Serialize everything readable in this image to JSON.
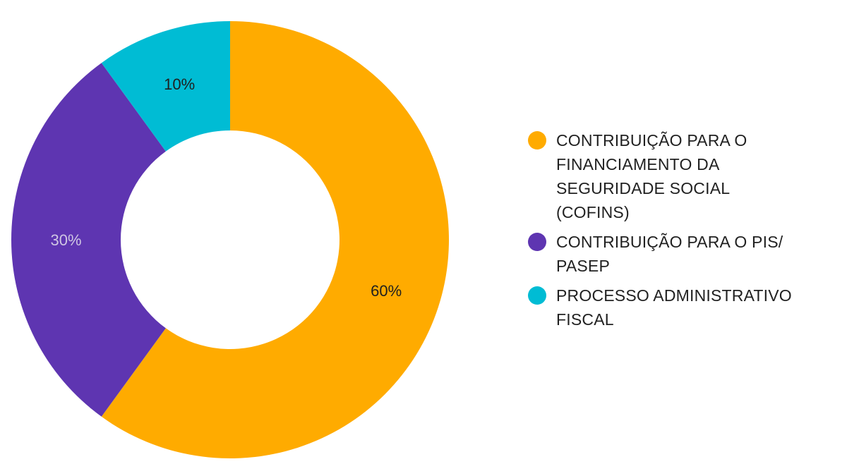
{
  "chart_data": {
    "type": "pie",
    "donut": true,
    "title": "",
    "categories": [
      "CONTRIBUIÇÃO PARA O FINANCIAMENTO DA SEGURIDADE SOCIAL (COFINS)",
      "CONTRIBUIÇÃO PARA O PIS/ PASEP",
      "PROCESSO ADMINISTRATIVO FISCAL"
    ],
    "values": [
      60,
      30,
      10
    ],
    "value_labels": [
      "60%",
      "30%",
      "10%"
    ],
    "colors": [
      "#FFAB00",
      "#5E35B1",
      "#00BCD4"
    ],
    "label_colors": [
      "#1f1f1f",
      "#cfc6e3",
      "#1f1f1f"
    ],
    "legend": {
      "placement": "right",
      "items": [
        {
          "label_lines": [
            "CONTRIBUIÇÃO PARA O",
            "FINANCIAMENTO DA",
            "SEGURIDADE SOCIAL",
            "(COFINS)"
          ],
          "color": "#FFAB00"
        },
        {
          "label_lines": [
            "CONTRIBUIÇÃO PARA O PIS/",
            "PASEP"
          ],
          "color": "#5E35B1"
        },
        {
          "label_lines": [
            "PROCESSO ADMINISTRATIVO",
            "FISCAL"
          ],
          "color": "#00BCD4"
        }
      ]
    }
  }
}
